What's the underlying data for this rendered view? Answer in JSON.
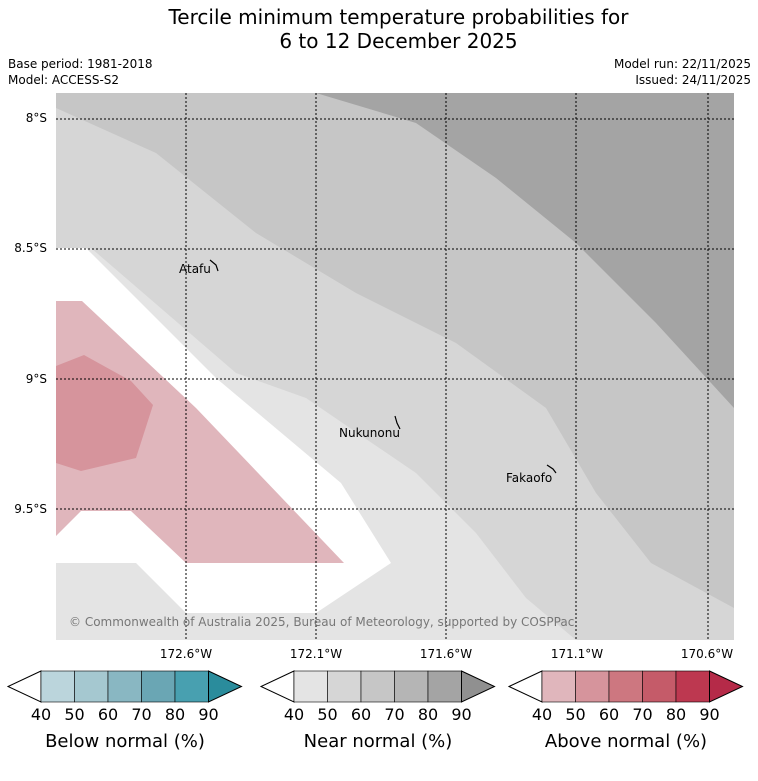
{
  "title_line1": "Tercile minimum temperature probabilities for",
  "title_line2": "6 to 12 December 2025",
  "base_period": "Base period: 1981-2018",
  "model": "Model: ACCESS-S2",
  "model_run": "Model run: 22/11/2025",
  "issued": "Issued: 24/11/2025",
  "copyright": "© Commonwealth of Australia 2025, Bureau of Meteorology, supported by COSPPac",
  "lat_labels": [
    "8°S",
    "8.5°S",
    "9°S",
    "9.5°S"
  ],
  "lon_labels": [
    "172.6°W",
    "172.1°W",
    "171.6°W",
    "171.1°W",
    "170.6°W"
  ],
  "places": [
    {
      "name": "Atafu"
    },
    {
      "name": "Nukunonu"
    },
    {
      "name": "Fakaofo"
    }
  ],
  "colorbars": [
    {
      "label": "Below normal (%)",
      "ticks": [
        "40",
        "50",
        "60",
        "70",
        "80",
        "90"
      ],
      "colors": [
        "#bbd5dc",
        "#a5c8d0",
        "#89b7c2",
        "#6aa6b4",
        "#48a0b0",
        "#2a8c9c"
      ]
    },
    {
      "label": "Near normal (%)",
      "ticks": [
        "40",
        "50",
        "60",
        "70",
        "80",
        "90"
      ],
      "colors": [
        "#e4e4e4",
        "#d6d6d6",
        "#c6c6c6",
        "#b5b5b5",
        "#a4a4a4",
        "#909090"
      ]
    },
    {
      "label": "Above normal (%)",
      "ticks": [
        "40",
        "50",
        "60",
        "70",
        "80",
        "90"
      ],
      "colors": [
        "#e0b6bc",
        "#d6949c",
        "#cd7780",
        "#c55b69",
        "#bd3850",
        "#b52a48"
      ]
    }
  ]
}
